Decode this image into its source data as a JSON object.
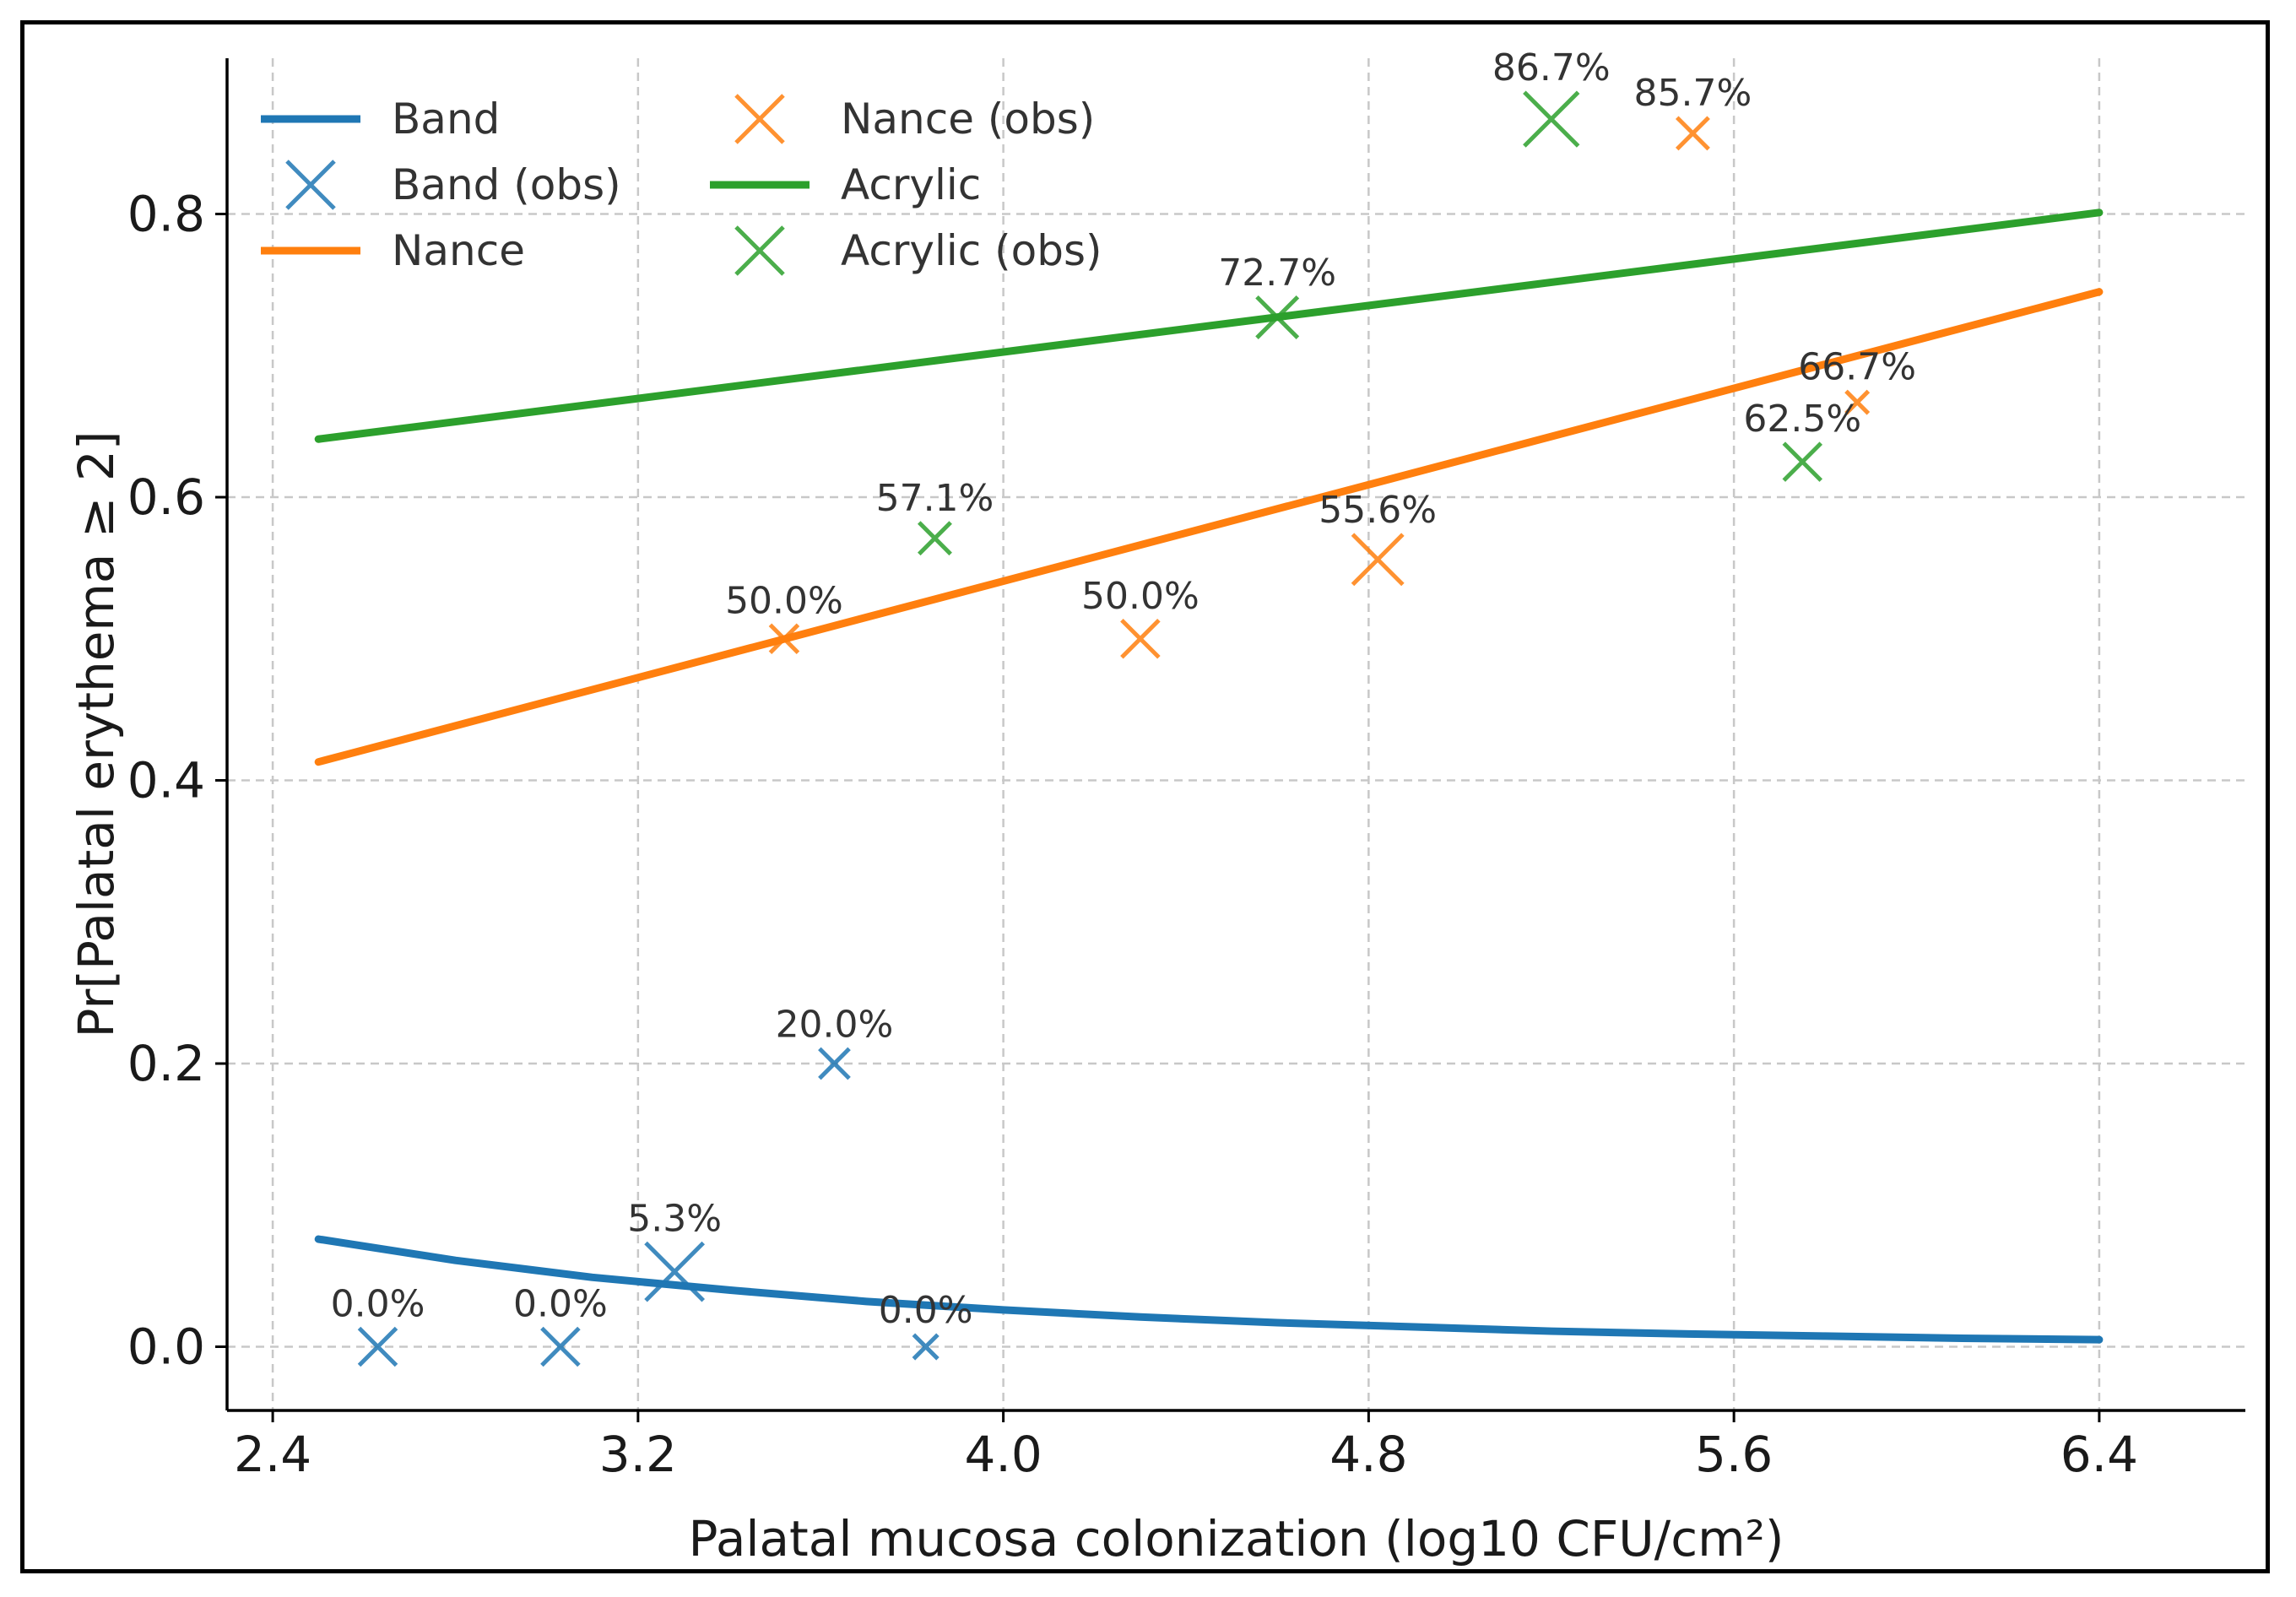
{
  "chart_data": {
    "type": "line",
    "title": "",
    "xlabel": "Palatal mucosa colonization (log10 CFU/cm²)",
    "ylabel": "Pr[Palatal erythema ≥ 2]",
    "xlim": [
      2.3,
      6.72
    ],
    "ylim": [
      -0.045,
      0.91
    ],
    "xticks": [
      2.4,
      3.2,
      4.0,
      4.8,
      5.6,
      6.4
    ],
    "xtick_labels": [
      "2.4",
      "3.2",
      "4.0",
      "4.8",
      "5.6",
      "6.4"
    ],
    "yticks": [
      0.0,
      0.2,
      0.4,
      0.6,
      0.8
    ],
    "ytick_labels": [
      "0.0",
      "0.2",
      "0.4",
      "0.6",
      "0.8"
    ],
    "grid": true,
    "legend_position": "top-left",
    "series": [
      {
        "name": "Band",
        "kind": "line",
        "color": "#1f77b4",
        "x": [
          2.5,
          2.8,
          3.1,
          3.4,
          3.7,
          4.0,
          4.3,
          4.6,
          4.9,
          5.2,
          5.5,
          5.8,
          6.1,
          6.4
        ],
        "y": [
          0.076,
          0.061,
          0.049,
          0.04,
          0.032,
          0.026,
          0.021,
          0.017,
          0.014,
          0.011,
          0.009,
          0.0075,
          0.006,
          0.005
        ]
      },
      {
        "name": "Band (obs)",
        "kind": "markers",
        "color": "#1f77b4",
        "points": [
          {
            "x": 2.63,
            "y": 0.0,
            "label": "0.0%",
            "size": 1.0
          },
          {
            "x": 3.03,
            "y": 0.0,
            "label": "0.0%",
            "size": 1.0
          },
          {
            "x": 3.28,
            "y": 0.053,
            "label": "5.3%",
            "size": 1.55
          },
          {
            "x": 3.63,
            "y": 0.2,
            "label": "20.0%",
            "size": 0.8
          },
          {
            "x": 3.83,
            "y": 0.0,
            "label": "0.0%",
            "size": 0.65
          }
        ]
      },
      {
        "name": "Nance",
        "kind": "line",
        "color": "#ff7f0e",
        "x": [
          2.5,
          6.4
        ],
        "y": [
          0.413,
          0.745
        ]
      },
      {
        "name": "Nance (obs)",
        "kind": "markers",
        "color": "#ff7f0e",
        "points": [
          {
            "x": 3.52,
            "y": 0.5,
            "label": "50.0%",
            "size": 0.75
          },
          {
            "x": 4.3,
            "y": 0.5,
            "label": "50.0%",
            "size": 1.0
          },
          {
            "x": 4.82,
            "y": 0.556,
            "label": "55.6%",
            "size": 1.35
          },
          {
            "x": 5.51,
            "y": 0.857,
            "label": "85.7%",
            "size": 0.85
          },
          {
            "x": 5.87,
            "y": 0.667,
            "label": "66.7%",
            "size": 0.6
          }
        ]
      },
      {
        "name": "Acrylic",
        "kind": "line",
        "color": "#2ca02c",
        "x": [
          2.5,
          6.4
        ],
        "y": [
          0.641,
          0.801
        ]
      },
      {
        "name": "Acrylic (obs)",
        "kind": "markers",
        "color": "#2ca02c",
        "points": [
          {
            "x": 3.85,
            "y": 0.571,
            "label": "57.1%",
            "size": 0.85
          },
          {
            "x": 4.6,
            "y": 0.727,
            "label": "72.7%",
            "size": 1.1
          },
          {
            "x": 5.2,
            "y": 0.867,
            "label": "86.7%",
            "size": 1.45
          },
          {
            "x": 5.75,
            "y": 0.625,
            "label": "62.5%",
            "size": 1.0
          }
        ]
      }
    ],
    "legend": [
      {
        "label": "Band",
        "kind": "line",
        "color": "#1f77b4"
      },
      {
        "label": "Band (obs)",
        "kind": "marker",
        "color": "#1f77b4"
      },
      {
        "label": "Nance",
        "kind": "line",
        "color": "#ff7f0e"
      },
      {
        "label": "Nance (obs)",
        "kind": "marker",
        "color": "#ff7f0e"
      },
      {
        "label": "Acrylic",
        "kind": "line",
        "color": "#2ca02c"
      },
      {
        "label": "Acrylic (obs)",
        "kind": "marker",
        "color": "#2ca02c"
      }
    ]
  }
}
